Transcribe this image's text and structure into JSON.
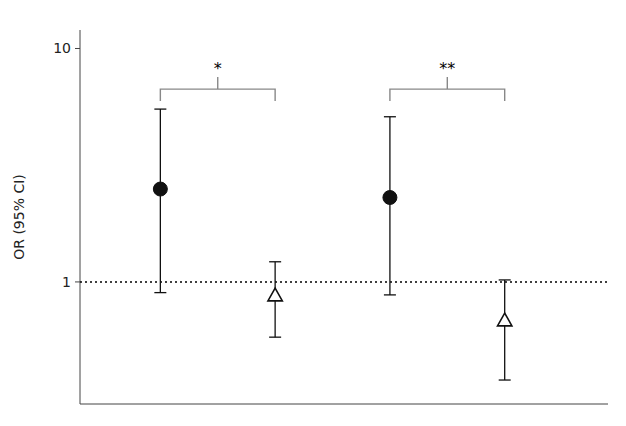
{
  "chart_data": {
    "type": "scatter",
    "ylabel": "OR (95% CI)",
    "log": "y",
    "grid": false,
    "tick_labels": "y",
    "xlim": [
      0.3,
      4.9
    ],
    "ylim": [
      0.3,
      12.0
    ],
    "yticks": [
      1,
      10
    ],
    "series": [
      {
        "marker": "circle",
        "color": "#111111",
        "x": [
          1,
          3
        ],
        "values": [
          2.5,
          2.3
        ],
        "ci_low": [
          0.9,
          0.88
        ],
        "ci_high": [
          5.5,
          5.1
        ]
      },
      {
        "marker": "triangle",
        "color": "#111111",
        "x": [
          2,
          4
        ],
        "values": [
          0.87,
          0.68
        ],
        "ci_low": [
          0.58,
          0.38
        ],
        "ci_high": [
          1.22,
          1.02
        ]
      }
    ],
    "reference_lines": [
      {
        "value": 1.0,
        "line_style": "dotted"
      }
    ],
    "annotations": [
      {
        "text": "*",
        "x": [
          1.0,
          2.0
        ],
        "color": "#888888"
      },
      {
        "text": "**",
        "x": [
          3.0,
          4.0
        ],
        "color": "#888888"
      }
    ]
  }
}
